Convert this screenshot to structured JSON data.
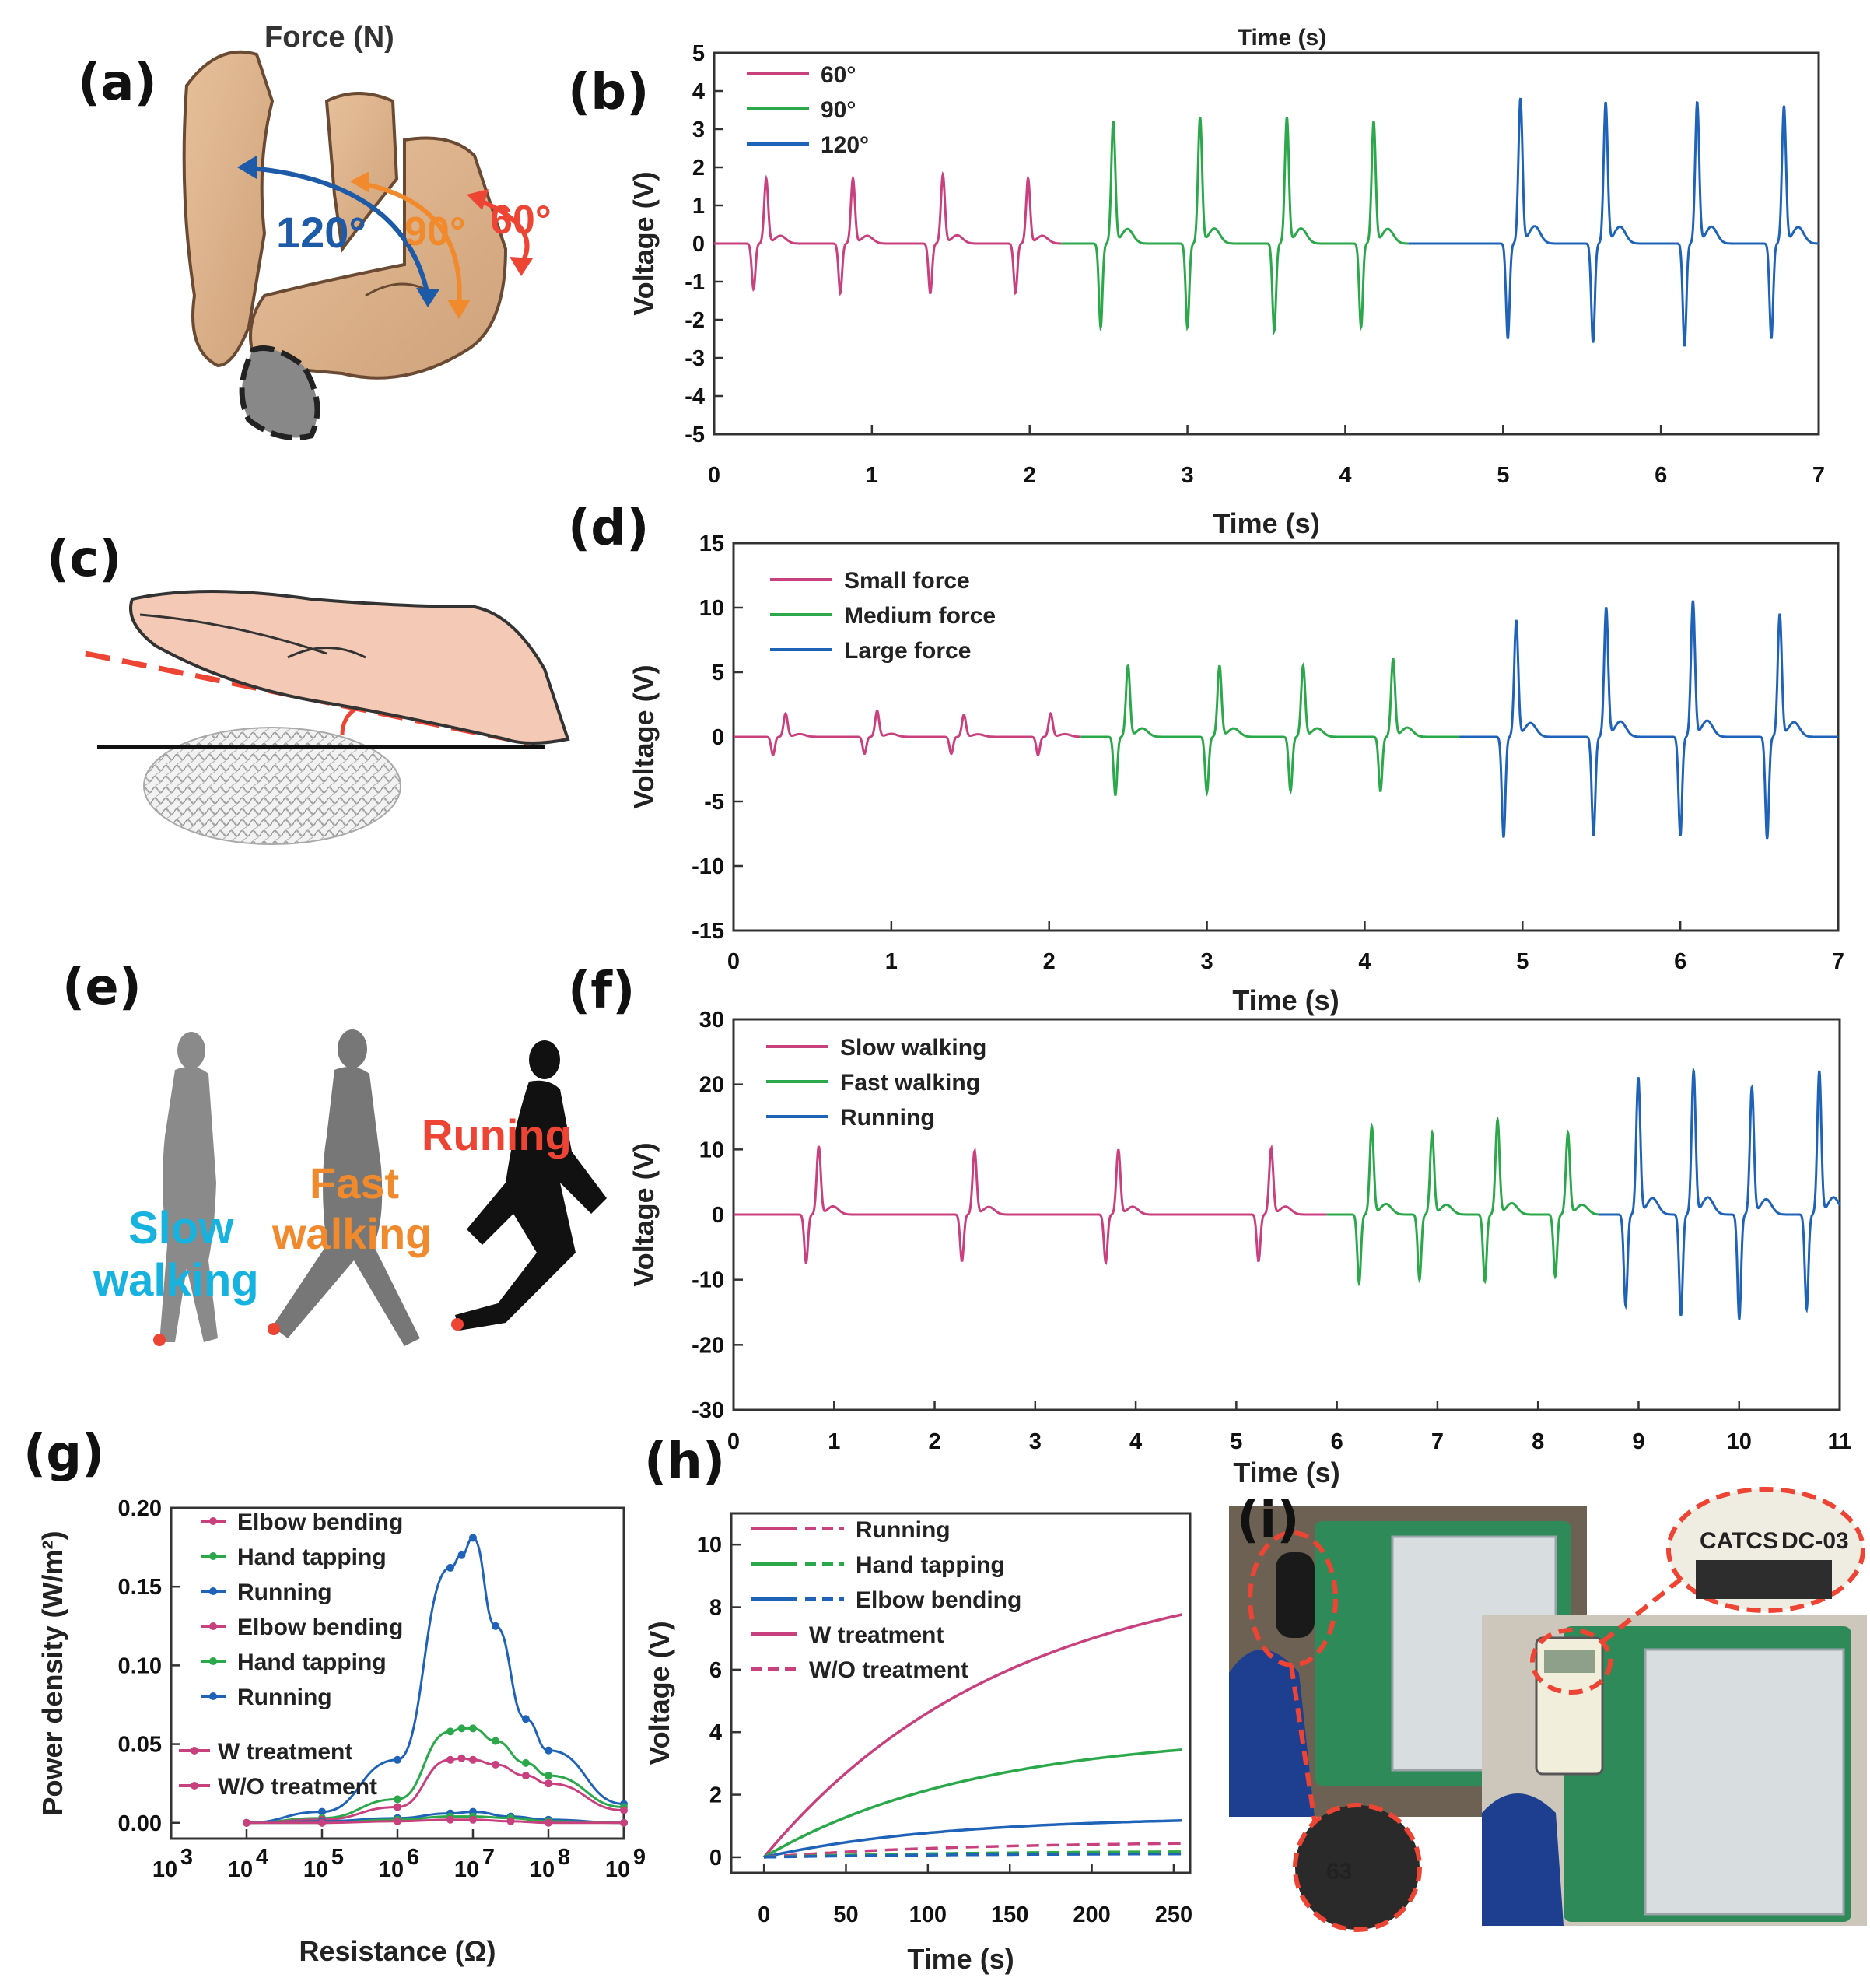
{
  "panel_labels": {
    "a": "(a)",
    "b": "(b)",
    "c": "(c)",
    "d": "(d)",
    "e": "(e)",
    "f": "(f)",
    "g": "(g)",
    "h": "(h)",
    "i": "(i)"
  },
  "illustration_a": {
    "title": "Force (N)",
    "angle_120": "120°",
    "angle_90": "90°",
    "angle_60": "60°"
  },
  "illustration_e": {
    "slow": [
      "Slow",
      "walking"
    ],
    "fast": [
      "Fast",
      "walking"
    ],
    "run": "Runing"
  },
  "photo_i": {
    "device_brand": "CATCS",
    "device_model": "DC-03",
    "screen_value": "63"
  },
  "colors": {
    "pink": "#c8407e",
    "green": "#2aa84a",
    "blue": "#1f63b8",
    "orange": "#f08a2c",
    "red": "#ee4433",
    "cyan": "#17b3e0",
    "darkblue": "#1d5aa8"
  },
  "chart_data": [
    {
      "id": "b",
      "type": "line",
      "top_title": "Time (s)",
      "xlabel": "Time (s)",
      "ylabel": "Voltage (V)",
      "xlim": [
        0,
        7
      ],
      "ylim": [
        -5,
        5
      ],
      "xticks": [
        0,
        1,
        2,
        3,
        4,
        5,
        6,
        7
      ],
      "yticks": [
        -5,
        -4,
        -3,
        -2,
        -1,
        0,
        1,
        2,
        3,
        4,
        5
      ],
      "series": [
        {
          "name": "60°",
          "color": "#c8407e",
          "range": [
            0,
            2.2
          ],
          "peaks": [
            [
              0.3,
              1.7,
              -1.2
            ],
            [
              0.85,
              1.7,
              -1.3
            ],
            [
              1.42,
              1.8,
              -1.3
            ],
            [
              1.96,
              1.7,
              -1.3
            ]
          ]
        },
        {
          "name": "90°",
          "color": "#2aa84a",
          "range": [
            2.2,
            4.4
          ],
          "peaks": [
            [
              2.5,
              3.2,
              -2.2
            ],
            [
              3.05,
              3.3,
              -2.2
            ],
            [
              3.6,
              3.3,
              -2.3
            ],
            [
              4.15,
              3.2,
              -2.2
            ]
          ]
        },
        {
          "name": "120°",
          "color": "#1f63b8",
          "range": [
            4.4,
            7.0
          ],
          "peaks": [
            [
              5.08,
              3.8,
              -2.5
            ],
            [
              5.62,
              3.7,
              -2.6
            ],
            [
              6.2,
              3.7,
              -2.7
            ],
            [
              6.75,
              3.6,
              -2.5
            ]
          ]
        }
      ]
    },
    {
      "id": "d",
      "type": "line",
      "xlabel": "Time (s)",
      "ylabel": "Voltage (V)",
      "xlim": [
        0,
        7
      ],
      "ylim": [
        -15,
        15
      ],
      "xticks": [
        0,
        1,
        2,
        3,
        4,
        5,
        6,
        7
      ],
      "yticks": [
        -15,
        -10,
        -5,
        0,
        5,
        10,
        15
      ],
      "series": [
        {
          "name": "Small force",
          "color": "#c8407e",
          "range": [
            0,
            2.2
          ],
          "peaks": [
            [
              0.3,
              1.8,
              -1.4
            ],
            [
              0.88,
              2.0,
              -1.3
            ],
            [
              1.43,
              1.7,
              -1.3
            ],
            [
              1.98,
              1.8,
              -1.4
            ]
          ]
        },
        {
          "name": "Medium force",
          "color": "#2aa84a",
          "range": [
            2.2,
            4.6
          ],
          "peaks": [
            [
              2.47,
              5.5,
              -4.5
            ],
            [
              3.05,
              5.5,
              -4.3
            ],
            [
              3.58,
              5.5,
              -4.2
            ],
            [
              4.15,
              6.0,
              -4.2
            ]
          ]
        },
        {
          "name": "Large force",
          "color": "#1f63b8",
          "range": [
            4.6,
            7.0
          ],
          "peaks": [
            [
              4.93,
              9.0,
              -7.8
            ],
            [
              5.5,
              10.0,
              -7.7
            ],
            [
              6.05,
              10.5,
              -7.7
            ],
            [
              6.6,
              9.5,
              -7.9
            ]
          ]
        }
      ]
    },
    {
      "id": "f",
      "type": "line",
      "xlabel": "Time (s)",
      "ylabel": "Voltage (V)",
      "xlim": [
        0,
        11
      ],
      "ylim": [
        -30,
        30
      ],
      "xticks": [
        0,
        1,
        2,
        3,
        4,
        5,
        6,
        7,
        8,
        9,
        10,
        11
      ],
      "yticks": [
        -30,
        -20,
        -10,
        0,
        10,
        20,
        30
      ],
      "series": [
        {
          "name": "Slow walking",
          "color": "#c8407e",
          "range": [
            0,
            5.9
          ],
          "peaks": [
            [
              0.8,
              10.5,
              -7.5
            ],
            [
              2.35,
              9.8,
              -7.2
            ],
            [
              3.78,
              10.0,
              -7.4
            ],
            [
              5.3,
              10.2,
              -7.2
            ]
          ]
        },
        {
          "name": "Fast walking",
          "color": "#2aa84a",
          "range": [
            5.9,
            8.6
          ],
          "peaks": [
            [
              6.3,
              13.5,
              -10.5
            ],
            [
              6.9,
              12.5,
              -10.0
            ],
            [
              7.55,
              14.5,
              -10.2
            ],
            [
              8.25,
              12.5,
              -9.5
            ]
          ]
        },
        {
          "name": "Running",
          "color": "#1f63b8",
          "range": [
            8.6,
            11.0
          ],
          "peaks": [
            [
              8.95,
              21.0,
              -14.0
            ],
            [
              9.5,
              22.0,
              -15.5
            ],
            [
              10.08,
              19.5,
              -16.0
            ],
            [
              10.75,
              22.0,
              -14.5
            ]
          ]
        }
      ]
    },
    {
      "id": "g",
      "type": "line",
      "xlabel": "Resistance (Ω)",
      "ylabel": "Power density (W/m²)",
      "x_scale": "log",
      "xlim_exp": [
        3,
        9
      ],
      "ylim": [
        -0.01,
        0.2
      ],
      "xtick_exps": [
        3,
        4,
        5,
        6,
        7,
        8,
        9
      ],
      "yticks": [
        0.0,
        0.05,
        0.1,
        0.15,
        0.2
      ],
      "ytick_labels": [
        "0.00",
        "0.05",
        "0.10",
        "0.15",
        "0.20"
      ],
      "legend": [
        "Elbow bending",
        "Hand tapping",
        "Running",
        "Elbow bending",
        "Hand tapping",
        "Running"
      ],
      "legend2": [
        "W treatment",
        "W/O treatment"
      ],
      "series": [
        {
          "name": "Running",
          "color": "#1f63b8",
          "x_exp": [
            4,
            5,
            6,
            6.7,
            6.85,
            7,
            7.3,
            7.7,
            8,
            9
          ],
          "y": [
            0.0,
            0.007,
            0.04,
            0.162,
            0.17,
            0.181,
            0.125,
            0.066,
            0.046,
            0.012
          ]
        },
        {
          "name": "Hand tapping",
          "color": "#2aa84a",
          "x_exp": [
            4,
            5,
            6,
            6.7,
            6.85,
            7,
            7.3,
            7.7,
            8,
            9
          ],
          "y": [
            0.0,
            0.003,
            0.015,
            0.058,
            0.06,
            0.06,
            0.052,
            0.038,
            0.03,
            0.01
          ]
        },
        {
          "name": "Elbow bending",
          "color": "#c8407e",
          "x_exp": [
            4,
            5,
            6,
            6.7,
            6.85,
            7,
            7.3,
            7.7,
            8,
            9
          ],
          "y": [
            0.0,
            0.002,
            0.01,
            0.04,
            0.041,
            0.04,
            0.037,
            0.03,
            0.025,
            0.008
          ]
        },
        {
          "name": "Running",
          "color": "#1f63b8",
          "x_exp": [
            4,
            5,
            6,
            6.7,
            7,
            7.5,
            8,
            9
          ],
          "y": [
            0.0,
            0.001,
            0.003,
            0.006,
            0.007,
            0.004,
            0.002,
            0.0
          ]
        },
        {
          "name": "Hand tapping",
          "color": "#2aa84a",
          "x_exp": [
            4,
            5,
            6,
            6.7,
            7,
            7.5,
            8,
            9
          ],
          "y": [
            0.0,
            0.0,
            0.002,
            0.004,
            0.004,
            0.003,
            0.001,
            0.0
          ]
        },
        {
          "name": "Elbow bending",
          "color": "#c8407e",
          "x_exp": [
            4,
            5,
            6,
            6.7,
            7,
            7.5,
            8,
            9
          ],
          "y": [
            0.0,
            0.0,
            0.001,
            0.002,
            0.002,
            0.001,
            0.0,
            0.0
          ]
        }
      ]
    },
    {
      "id": "h",
      "type": "line",
      "xlabel": "Time (s)",
      "ylabel": "Voltage (V)",
      "xlim": [
        -20,
        260
      ],
      "ylim": [
        -0.5,
        11
      ],
      "xticks": [
        0,
        50,
        100,
        150,
        200,
        250
      ],
      "yticks": [
        0,
        2,
        4,
        6,
        8,
        10
      ],
      "legend": [
        "Running",
        "Hand tapping",
        "Elbow bending"
      ],
      "legend2": [
        "W treatment",
        "W/O treatment"
      ],
      "series": [
        {
          "name": "Running",
          "color": "#c8407e",
          "style": "solid",
          "vmax": 9.5,
          "tau": 150,
          "end_x": 255
        },
        {
          "name": "Hand tapping",
          "color": "#2aa84a",
          "style": "solid",
          "vmax": 4.0,
          "tau": 130,
          "end_x": 255
        },
        {
          "name": "Elbow bending",
          "color": "#1f63b8",
          "style": "solid",
          "vmax": 1.3,
          "tau": 110,
          "end_x": 255
        },
        {
          "name": "Running",
          "color": "#c8407e",
          "style": "dashed",
          "vmax": 0.5,
          "tau": 120,
          "end_x": 255
        },
        {
          "name": "Hand tapping",
          "color": "#2aa84a",
          "style": "dashed",
          "vmax": 0.2,
          "tau": 120,
          "end_x": 255
        },
        {
          "name": "Elbow bending",
          "color": "#1f63b8",
          "style": "dashed",
          "vmax": 0.12,
          "tau": 120,
          "end_x": 255
        }
      ]
    }
  ]
}
